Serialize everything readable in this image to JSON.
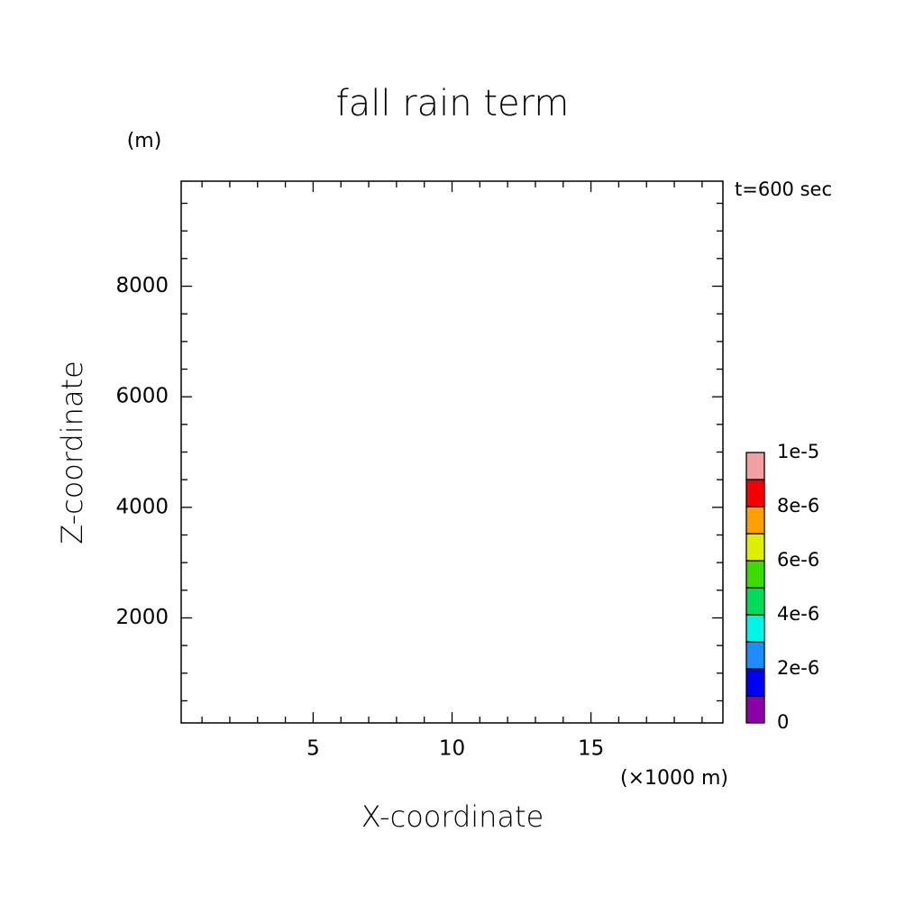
{
  "chart_data": {
    "type": "contour",
    "title": "fall rain term",
    "x_label": "X-coordinate",
    "y_label": "Z-coordinate",
    "x_unit": "(×1000 m)",
    "y_unit": "(m)",
    "annotation": "t=600 sec",
    "xlim": [
      0.25,
      19.75
    ],
    "xticks": [
      5,
      10,
      15
    ],
    "xminorticks": [
      1,
      2,
      3,
      4,
      6,
      7,
      8,
      9,
      11,
      12,
      13,
      14,
      16,
      17,
      18,
      19
    ],
    "ylim": [
      100,
      9900
    ],
    "yticks": [
      2000,
      4000,
      6000,
      8000
    ],
    "yminorticks": [
      500,
      1000,
      1500,
      2500,
      3000,
      3500,
      4500,
      5000,
      5500,
      6500,
      7000,
      7500,
      8500,
      9000,
      9500
    ],
    "colorbar": {
      "levels": [
        0,
        1e-06,
        2e-06,
        3e-06,
        4e-06,
        5e-06,
        6e-06,
        7e-06,
        8e-06,
        9e-06,
        1e-05
      ],
      "colors": [
        "#8c00a8",
        "#0000f5",
        "#1e8cff",
        "#00f5e6",
        "#00dc5a",
        "#3cdc00",
        "#dcf000",
        "#ffa000",
        "#f50000",
        "#f5a0a0"
      ],
      "ticks": [
        0,
        {
          "value": 2e-06,
          "label": "2e-6"
        },
        {
          "value": 4e-06,
          "label": "4e-6"
        },
        {
          "value": 6e-06,
          "label": "6e-6"
        },
        {
          "value": 8e-06,
          "label": "8e-6"
        },
        {
          "value": 1e-05,
          "label": "1e-5"
        }
      ]
    }
  }
}
